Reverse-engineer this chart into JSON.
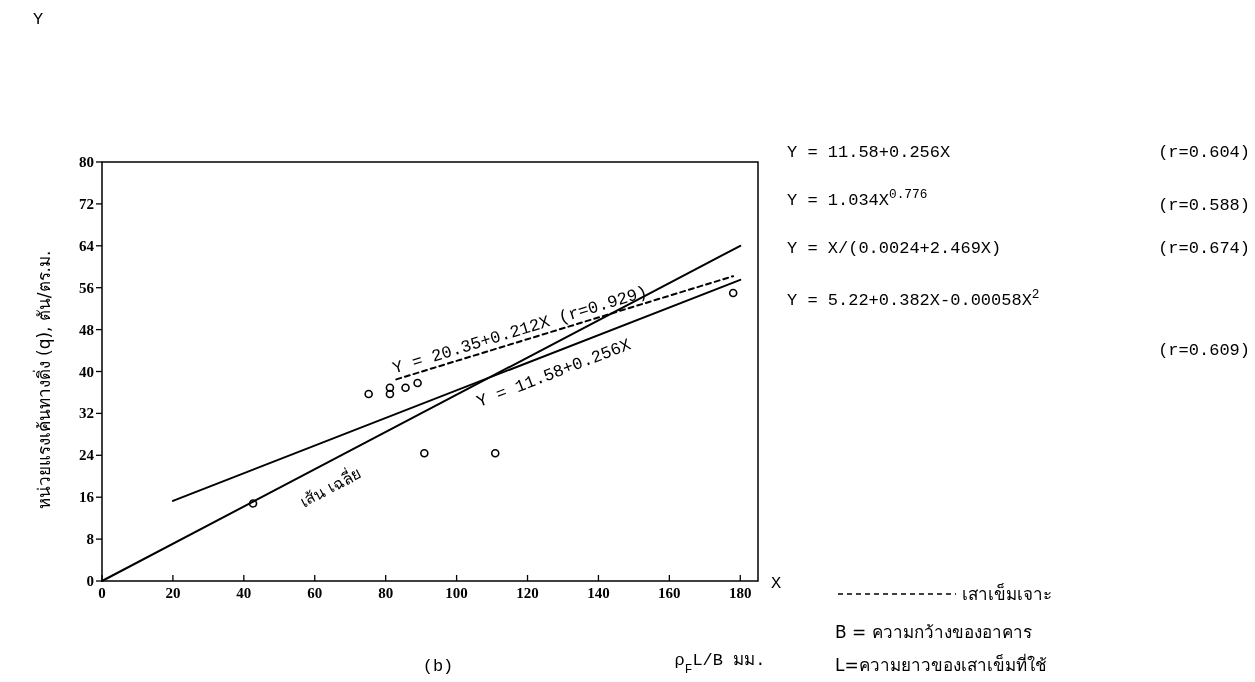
{
  "chart_data": {
    "type": "line",
    "xlabel": "ρ$_{F}$L/B มม.",
    "ylabel": "หน่วยแรงเค้นทางดิ่ง (q), ตัน/ตร.ม.",
    "xlim": [
      0,
      185
    ],
    "xticks": [
      0,
      20,
      40,
      60,
      80,
      100,
      120,
      140,
      160,
      180
    ],
    "ylim": [
      0,
      80
    ],
    "yticks": [
      0,
      8,
      16,
      24,
      32,
      40,
      48,
      56,
      64,
      72,
      80
    ],
    "grid": false,
    "legend": "bottom right",
    "series": [
      {
        "type": "line",
        "color": "#000000",
        "x": [
          20,
          180
        ],
        "values": [
          15.3,
          57.5
        ]
      },
      {
        "type": "line",
        "color": "#000000",
        "x": [
          0,
          180
        ],
        "values": [
          0,
          64
        ]
      },
      {
        "type": "line",
        "name": "เสาเข็มเจาะ",
        "line_style": "dashed",
        "color": "#000000",
        "x": [
          83,
          178
        ],
        "values": [
          38.5,
          58.2
        ]
      },
      {
        "type": "scatter",
        "color": "#000000",
        "x": [
          42.6,
          75.2,
          81.2,
          81.2,
          85.6,
          89,
          90.9,
          110.9,
          178
        ],
        "values": [
          14.8,
          35.7,
          36.9,
          35.7,
          36.9,
          37.8,
          24.4,
          24.4,
          55
        ]
      }
    ],
    "annotations": [
      {
        "text": "Y = 20.35+0.212X (r=0.929)",
        "x": 83,
        "y": 38.5
      },
      {
        "text": "Y = 11.58+0.256X",
        "x": 104,
        "y": 37.5
      },
      {
        "text": "เส้น เฉลี่ย",
        "x": 62,
        "y": 21
      },
      "Y = 11.58+0.256X",
      "(r=0.604)",
      "Y = 1.034X$^{0.776}$",
      "(r=0.588)",
      "Y = X/(0.0024+2.469X)",
      "(r=0.674)",
      "Y = 5.22+0.382X-0.00058X$^{2}$",
      "(r=0.609)",
      "B = ความกว้างของอาคาร",
      "L=ความยาวของเสาเข็มที่ใช้",
      "(b)",
      "Y",
      "X"
    ]
  }
}
